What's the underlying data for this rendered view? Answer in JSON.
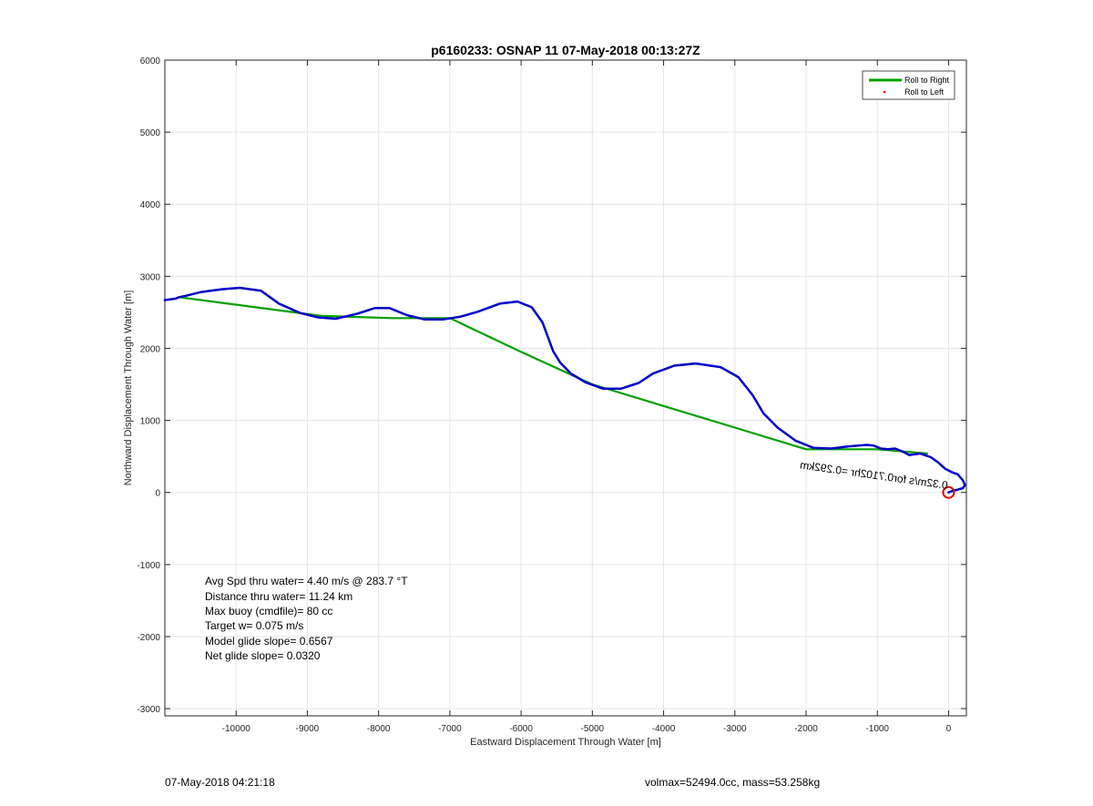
{
  "chart_data": {
    "type": "line",
    "title": "p6160233: OSNAP 11 07-May-2018 00:13:27Z",
    "xlabel": "Eastward Displacement Through Water [m]",
    "ylabel": "Northward Displacement Through Water [m]",
    "xlim": [
      -11000,
      250
    ],
    "ylim": [
      -3100,
      6000
    ],
    "xticks": [
      -10000,
      -9000,
      -8000,
      -7000,
      -6000,
      -5000,
      -4000,
      -3000,
      -2000,
      -1000,
      0
    ],
    "yticks": [
      -3000,
      -2000,
      -1000,
      0,
      1000,
      2000,
      3000,
      4000,
      5000,
      6000
    ],
    "grid": true,
    "legend_position": "top-right",
    "legend": [
      {
        "label": "Roll to Right",
        "color": "#00a000",
        "marker": "line"
      },
      {
        "label": "Roll to Left",
        "color": "#ff0000",
        "marker": "dot"
      }
    ],
    "series": [
      {
        "color": "#0000c8",
        "x": [
          -11000,
          -10850,
          -10800,
          -10700,
          -10500,
          -10200,
          -9950,
          -9650,
          -9400,
          -9100,
          -8850,
          -8600,
          -8300,
          -8050,
          -7850,
          -7600,
          -7350,
          -7100,
          -6850,
          -6600,
          -6300,
          -6050,
          -5850,
          -5700,
          -5550,
          -5450,
          -5300,
          -5100,
          -4850,
          -4600,
          -4350,
          -4150,
          -3850,
          -3550,
          -3200,
          -2950,
          -2750,
          -2600,
          -2400,
          -2150,
          -1900,
          -1650,
          -1400,
          -1150,
          -1050,
          -950,
          -850,
          -750,
          -650,
          -550,
          -400,
          -250,
          -150,
          -50,
          50,
          130,
          200,
          230,
          200,
          130,
          50,
          0
        ],
        "y": [
          2670,
          2690,
          2710,
          2730,
          2780,
          2820,
          2840,
          2800,
          2620,
          2490,
          2430,
          2410,
          2480,
          2560,
          2560,
          2460,
          2400,
          2400,
          2440,
          2510,
          2620,
          2650,
          2570,
          2360,
          1960,
          1800,
          1650,
          1530,
          1440,
          1440,
          1520,
          1650,
          1760,
          1790,
          1740,
          1600,
          1350,
          1100,
          900,
          720,
          620,
          610,
          640,
          660,
          650,
          610,
          600,
          610,
          570,
          520,
          540,
          490,
          420,
          330,
          280,
          250,
          170,
          100,
          60,
          40,
          20,
          0
        ]
      },
      {
        "color": "#00a000",
        "x": [
          -10800,
          -9800,
          -8800,
          -7800,
          -7000,
          -6000,
          -5000,
          -4000,
          -3000,
          -2000,
          -1000,
          -300
        ],
        "y": [
          2710,
          2580,
          2450,
          2420,
          2420,
          1950,
          1500,
          1200,
          900,
          600,
          600,
          540
        ]
      }
    ],
    "surface_marker": {
      "x": 0,
      "y": 0,
      "color": "#e00000"
    },
    "annotations": [
      "Avg Spd thru water=  4.40 m/s @ 283.7 °T",
      "Distance thru water= 11.24 km",
      "Max buoy (cmdfile)= 80 cc",
      "Target w= 0.075 m/s",
      "Model glide slope= 0.6567",
      "Net glide slope= 0.0320"
    ],
    "overlap_label": "0.32m/s for0.7102hr =0.292km"
  },
  "footer": {
    "left": "07-May-2018 04:21:18",
    "right": "volmax=52494.0cc, mass=53.258kg"
  }
}
